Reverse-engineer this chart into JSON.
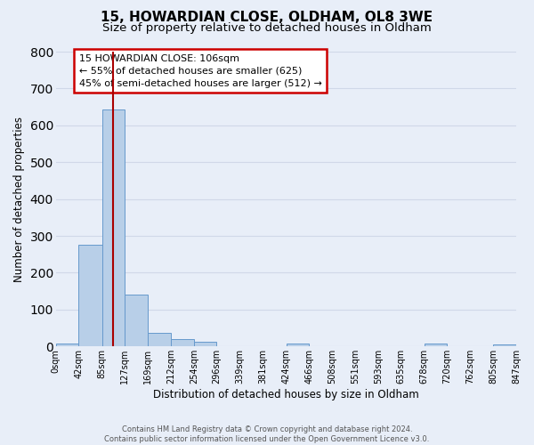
{
  "title": "15, HOWARDIAN CLOSE, OLDHAM, OL8 3WE",
  "subtitle": "Size of property relative to detached houses in Oldham",
  "xlabel": "Distribution of detached houses by size in Oldham",
  "ylabel": "Number of detached properties",
  "bin_edges": [
    0,
    42,
    85,
    127,
    169,
    212,
    254,
    296,
    339,
    381,
    424,
    466,
    508,
    551,
    593,
    635,
    678,
    720,
    762,
    805,
    847
  ],
  "bin_counts": [
    8,
    275,
    643,
    140,
    37,
    20,
    12,
    0,
    0,
    0,
    8,
    0,
    0,
    0,
    0,
    0,
    8,
    0,
    0,
    5
  ],
  "bar_color": "#b8cfe8",
  "bar_edge_color": "#6699cc",
  "property_size": 106,
  "annotation_text_line1": "15 HOWARDIAN CLOSE: 106sqm",
  "annotation_text_line2": "← 55% of detached houses are smaller (625)",
  "annotation_text_line3": "45% of semi-detached houses are larger (512) →",
  "annotation_box_facecolor": "#ffffff",
  "annotation_box_edgecolor": "#cc0000",
  "red_line_color": "#aa0000",
  "ylim": [
    0,
    800
  ],
  "yticks": [
    0,
    100,
    200,
    300,
    400,
    500,
    600,
    700,
    800
  ],
  "tick_labels": [
    "0sqm",
    "42sqm",
    "85sqm",
    "127sqm",
    "169sqm",
    "212sqm",
    "254sqm",
    "296sqm",
    "339sqm",
    "381sqm",
    "424sqm",
    "466sqm",
    "508sqm",
    "551sqm",
    "593sqm",
    "635sqm",
    "678sqm",
    "720sqm",
    "762sqm",
    "805sqm",
    "847sqm"
  ],
  "footer_line1": "Contains HM Land Registry data © Crown copyright and database right 2024.",
  "footer_line2": "Contains public sector information licensed under the Open Government Licence v3.0.",
  "background_color": "#e8eef8",
  "grid_color": "#d0d8e8",
  "title_fontsize": 11,
  "subtitle_fontsize": 9.5,
  "axis_label_fontsize": 8.5,
  "tick_fontsize": 7,
  "footer_fontsize": 6,
  "annotation_fontsize": 8
}
